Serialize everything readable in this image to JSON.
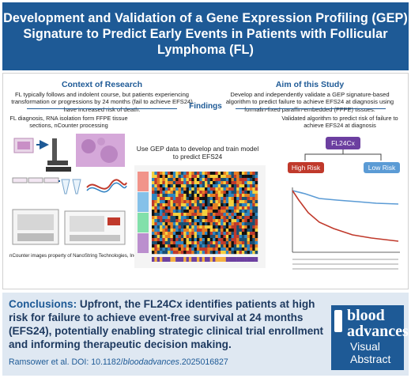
{
  "header": {
    "title": "Development and Validation of a Gene Expression Profiling (GEP)  Signature to Predict Early Events in Patients with Follicular Lymphoma (FL)"
  },
  "context": {
    "title": "Context of Research",
    "text": "FL typically follows and indolent course, but patients experiencing transformation or progressions by 24 months (fail to achieve EFS24) have increased risk of death."
  },
  "aim": {
    "title": "Aim of this Study",
    "text": "Develop and independently validate a GEP signature-based algorithm to predict failure to achieve EFS24 at diagnosis using formalin-fixed paraffin-embedded (FFPE) tissues."
  },
  "findings": {
    "title": "Findings",
    "left_caption": "FL diagnosis, RNA isolation form FFPE tissue sections, nCounter processing",
    "left_footnote": "nCounter images property of NanoString Technologies, Inc.",
    "middle_caption": "Use GEP data to develop and train model to predict EFS24",
    "right_caption": "Validated algorithm to predict risk of failure to achieve EFS24 at diagnosis",
    "fl24cx_label": "FL24Cx",
    "high_risk_label": "High Risk",
    "low_risk_label": "Low Risk"
  },
  "conclusions": {
    "lead": "Conclusions:",
    "text": " Upfront, the FL24Cx identifies patients at high risk for failure to achieve event-free survival at 24 months (EFS24), potentially enabling strategic clinical trial enrollment and informing therapeutic decision making.",
    "citation_prefix": "Ramsower et al. DOI: 10.1182/",
    "citation_italic": "bloodadvances",
    "citation_suffix": ".2025016827"
  },
  "logo": {
    "line1": "blood",
    "line2": "advances",
    "line3": "Visual",
    "line4": "Abstract"
  },
  "colors": {
    "brand_blue": "#1e5a96",
    "high_risk": "#c0392b",
    "low_risk": "#5b9bd5",
    "fl24cx_purple": "#6c3fa0"
  }
}
